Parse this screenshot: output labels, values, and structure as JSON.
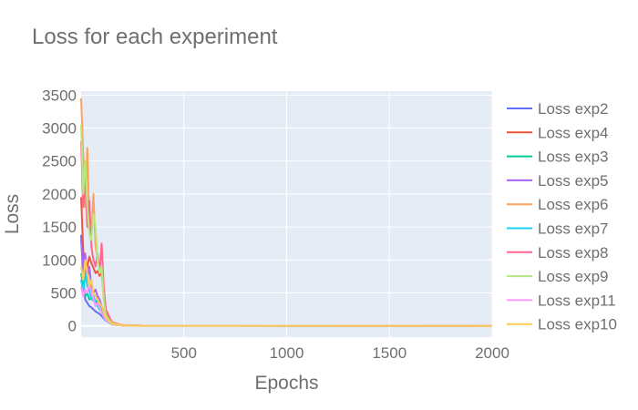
{
  "chart_data": {
    "type": "line",
    "title": "Loss for each experiment",
    "xlabel": "Epochs",
    "ylabel": "Loss",
    "xlim": [
      0,
      2000
    ],
    "ylim": [
      -170,
      3560
    ],
    "x_ticks": [
      500,
      1000,
      1500,
      2000
    ],
    "y_ticks": [
      0,
      500,
      1000,
      1500,
      2000,
      2500,
      3000,
      3500
    ],
    "grid": true,
    "legend_position": "right",
    "plot_background": "#e5ecf6",
    "series": [
      {
        "name": "Loss exp2",
        "color": "#636efa",
        "x": [
          0,
          10,
          20,
          30,
          40,
          50,
          60,
          70,
          80,
          90,
          100,
          120,
          150,
          200,
          300,
          2000
        ],
        "y": [
          1380,
          700,
          400,
          350,
          300,
          280,
          250,
          220,
          200,
          180,
          150,
          80,
          30,
          8,
          2,
          0
        ]
      },
      {
        "name": "Loss exp4",
        "color": "#ef553b",
        "x": [
          0,
          10,
          20,
          30,
          40,
          50,
          60,
          70,
          80,
          90,
          100,
          110,
          120,
          130,
          150,
          200,
          300,
          2000
        ],
        "y": [
          1950,
          1150,
          700,
          900,
          1050,
          950,
          880,
          800,
          830,
          760,
          800,
          500,
          250,
          120,
          40,
          10,
          3,
          0
        ]
      },
      {
        "name": "Loss exp3",
        "color": "#00cc96",
        "x": [
          0,
          10,
          20,
          30,
          40,
          50,
          60,
          70,
          80,
          90,
          100,
          120,
          150,
          200,
          300,
          2000
        ],
        "y": [
          800,
          600,
          450,
          500,
          400,
          420,
          380,
          350,
          400,
          300,
          250,
          100,
          30,
          8,
          2,
          0
        ]
      },
      {
        "name": "Loss exp5",
        "color": "#ab63fa",
        "x": [
          0,
          10,
          20,
          30,
          40,
          50,
          60,
          70,
          80,
          90,
          100,
          120,
          150,
          200,
          300,
          2000
        ],
        "y": [
          1300,
          900,
          1100,
          700,
          900,
          600,
          500,
          550,
          450,
          400,
          300,
          150,
          50,
          10,
          2,
          0
        ]
      },
      {
        "name": "Loss exp6",
        "color": "#ffa15a",
        "x": [
          0,
          10,
          20,
          30,
          40,
          50,
          60,
          70,
          80,
          90,
          100,
          110,
          120,
          150,
          200,
          300,
          2000
        ],
        "y": [
          3450,
          2600,
          1800,
          2700,
          1600,
          1400,
          2000,
          1200,
          1000,
          900,
          800,
          400,
          200,
          60,
          12,
          3,
          0
        ]
      },
      {
        "name": "Loss exp7",
        "color": "#19d3f3",
        "x": [
          0,
          10,
          20,
          30,
          40,
          50,
          60,
          70,
          80,
          90,
          100,
          120,
          150,
          200,
          300,
          2000
        ],
        "y": [
          700,
          500,
          800,
          600,
          550,
          400,
          450,
          350,
          300,
          250,
          200,
          80,
          20,
          5,
          1,
          0
        ]
      },
      {
        "name": "Loss exp8",
        "color": "#ff6692",
        "x": [
          0,
          10,
          20,
          30,
          40,
          50,
          60,
          70,
          80,
          90,
          100,
          110,
          120,
          150,
          200,
          300,
          2000
        ],
        "y": [
          2800,
          1800,
          2200,
          1500,
          1900,
          1200,
          1000,
          900,
          1100,
          800,
          1250,
          600,
          250,
          50,
          10,
          2,
          0
        ]
      },
      {
        "name": "Loss exp9",
        "color": "#b6e880",
        "x": [
          0,
          10,
          20,
          30,
          40,
          50,
          60,
          70,
          80,
          90,
          100,
          110,
          120,
          150,
          200,
          300,
          2000
        ],
        "y": [
          3050,
          2000,
          2500,
          1800,
          1400,
          1300,
          1700,
          1500,
          1000,
          800,
          900,
          400,
          150,
          40,
          8,
          2,
          0
        ]
      },
      {
        "name": "Loss exp11",
        "color": "#ff97ff",
        "x": [
          0,
          10,
          20,
          30,
          40,
          50,
          60,
          70,
          80,
          90,
          100,
          120,
          150,
          200,
          300,
          2000
        ],
        "y": [
          600,
          450,
          550,
          500,
          650,
          500,
          400,
          300,
          350,
          280,
          200,
          90,
          25,
          5,
          1,
          0
        ]
      },
      {
        "name": "Loss exp10",
        "color": "#fecb52",
        "x": [
          0,
          10,
          20,
          30,
          40,
          50,
          60,
          70,
          80,
          90,
          100,
          120,
          150,
          200,
          300,
          2000
        ],
        "y": [
          900,
          700,
          1000,
          800,
          600,
          700,
          500,
          450,
          400,
          350,
          300,
          120,
          30,
          6,
          1,
          0
        ]
      }
    ]
  }
}
